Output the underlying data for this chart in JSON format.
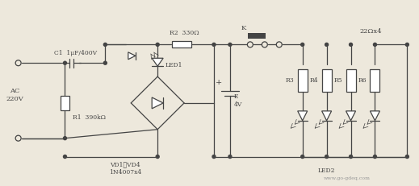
{
  "bg_color": "#ede8dc",
  "line_color": "#444444",
  "labels": {
    "C1": "C1  1μF/400V",
    "AC": "AC\n220V",
    "R1": "R1  390kΩ",
    "R2": "R2  330Ω",
    "LED1": "LED1",
    "VD1": "VD1～VD4\n1N4007x4",
    "E": "E\n4V",
    "K": "K",
    "R3": "R3",
    "R4": "R4",
    "R5": "R5",
    "R6": "R6",
    "LED2": "LED2",
    "ohm4": "22Ωx4",
    "plus": "+"
  },
  "watermark": "www.go-gdeq.com"
}
